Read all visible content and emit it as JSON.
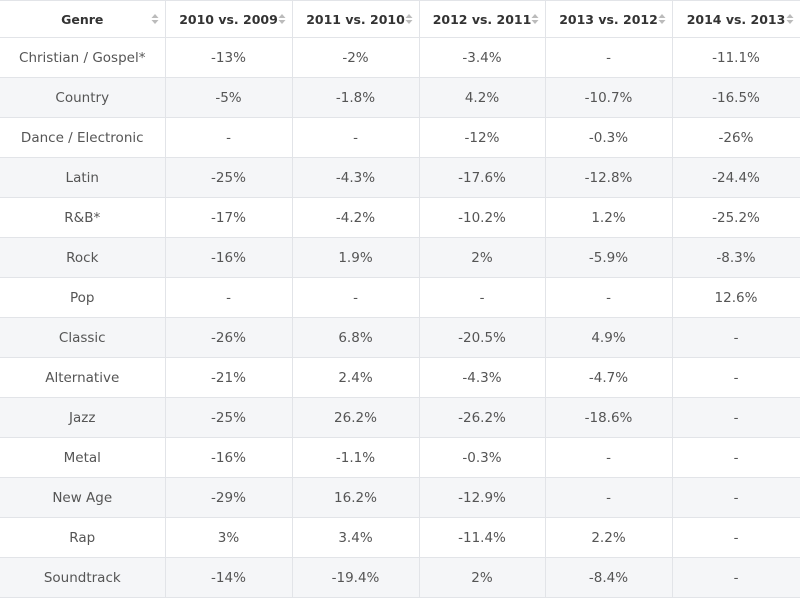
{
  "table": {
    "headers": [
      "Genre",
      "2010 vs. 2009",
      "2011 vs. 2010",
      "2012 vs. 2011",
      "2013 vs. 2012",
      "2014 vs. 2013"
    ],
    "rows": [
      [
        "Christian / Gospel*",
        "-13%",
        "-2%",
        "-3.4%",
        "-",
        "-11.1%"
      ],
      [
        "Country",
        "-5%",
        "-1.8%",
        "4.2%",
        "-10.7%",
        "-16.5%"
      ],
      [
        "Dance / Electronic",
        "-",
        "-",
        "-12%",
        "-0.3%",
        "-26%"
      ],
      [
        "Latin",
        "-25%",
        "-4.3%",
        "-17.6%",
        "-12.8%",
        "-24.4%"
      ],
      [
        "R&B*",
        "-17%",
        "-4.2%",
        "-10.2%",
        "1.2%",
        "-25.2%"
      ],
      [
        "Rock",
        "-16%",
        "1.9%",
        "2%",
        "-5.9%",
        "-8.3%"
      ],
      [
        "Pop",
        "-",
        "-",
        "-",
        "-",
        "12.6%"
      ],
      [
        "Classic",
        "-26%",
        "6.8%",
        "-20.5%",
        "4.9%",
        "-"
      ],
      [
        "Alternative",
        "-21%",
        "2.4%",
        "-4.3%",
        "-4.7%",
        "-"
      ],
      [
        "Jazz",
        "-25%",
        "26.2%",
        "-26.2%",
        "-18.6%",
        "-"
      ],
      [
        "Metal",
        "-16%",
        "-1.1%",
        "-0.3%",
        "-",
        "-"
      ],
      [
        "New Age",
        "-29%",
        "16.2%",
        "-12.9%",
        "-",
        "-"
      ],
      [
        "Rap",
        "3%",
        "3.4%",
        "-11.4%",
        "2.2%",
        "-"
      ],
      [
        "Soundtrack",
        "-14%",
        "-19.4%",
        "2%",
        "-8.4%",
        "-"
      ]
    ]
  }
}
